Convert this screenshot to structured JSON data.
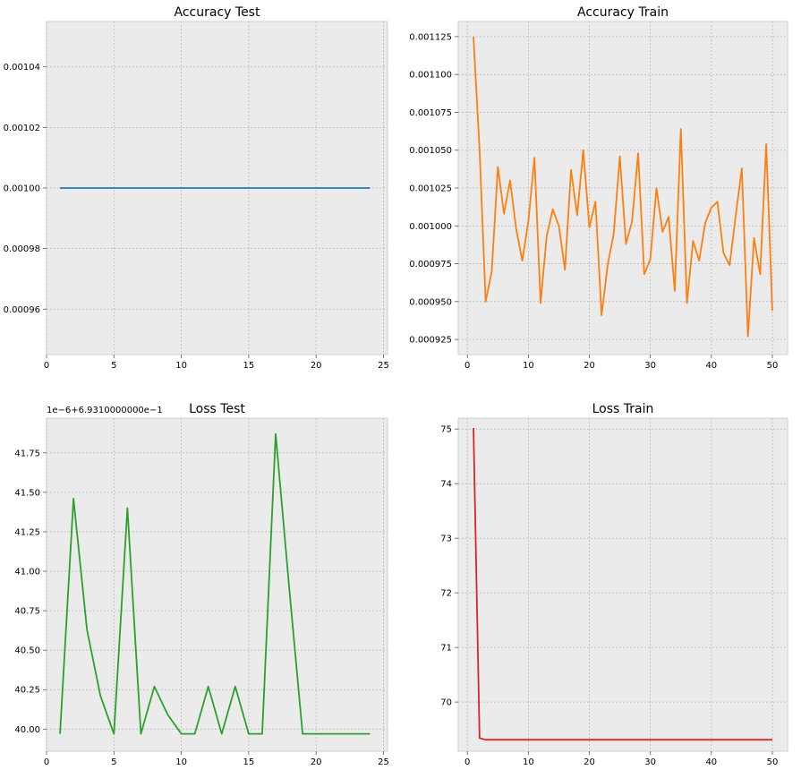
{
  "chart_data": [
    {
      "type": "line",
      "title": "Accuracy Test",
      "xlabel": "",
      "ylabel": "",
      "xlim": [
        0.0,
        25.3
      ],
      "ylim": [
        0.000945,
        0.001055
      ],
      "xticks": [
        0,
        5,
        10,
        15,
        20,
        25
      ],
      "yticks": [
        0.00096,
        0.00098,
        0.001,
        0.00102,
        0.00104
      ],
      "ytick_labels": [
        "0.00096",
        "0.00098",
        "0.00100",
        "0.00102",
        "0.00104"
      ],
      "offset_text": "",
      "grid": true,
      "color": "#1f77b4",
      "x": [
        1,
        2,
        3,
        4,
        5,
        6,
        7,
        8,
        9,
        10,
        11,
        12,
        13,
        14,
        15,
        16,
        17,
        18,
        19,
        20,
        21,
        22,
        23,
        24
      ],
      "y": [
        0.001,
        0.001,
        0.001,
        0.001,
        0.001,
        0.001,
        0.001,
        0.001,
        0.001,
        0.001,
        0.001,
        0.001,
        0.001,
        0.001,
        0.001,
        0.001,
        0.001,
        0.001,
        0.001,
        0.001,
        0.001,
        0.001,
        0.001,
        0.001
      ]
    },
    {
      "type": "line",
      "title": "Accuracy Train",
      "xlabel": "",
      "ylabel": "",
      "xlim": [
        -1.5,
        52.5
      ],
      "ylim": [
        0.000915,
        0.001135
      ],
      "xticks": [
        0,
        10,
        20,
        30,
        40,
        50
      ],
      "yticks": [
        0.000925,
        0.00095,
        0.000975,
        0.001,
        0.001025,
        0.00105,
        0.001075,
        0.0011,
        0.001125
      ],
      "ytick_labels": [
        "0.000925",
        "0.000950",
        "0.000975",
        "0.001000",
        "0.001025",
        "0.001050",
        "0.001075",
        "0.001100",
        "0.001125"
      ],
      "offset_text": "",
      "grid": true,
      "color": "#ff7f0e",
      "x": [
        1,
        2,
        3,
        4,
        5,
        6,
        7,
        8,
        9,
        10,
        11,
        12,
        13,
        14,
        15,
        16,
        17,
        18,
        19,
        20,
        21,
        22,
        23,
        24,
        25,
        26,
        27,
        28,
        29,
        30,
        31,
        32,
        33,
        34,
        35,
        36,
        37,
        38,
        39,
        40,
        41,
        42,
        43,
        44,
        45,
        46,
        47,
        48,
        49,
        50
      ],
      "y": [
        0.001125,
        0.00105,
        0.00095,
        0.00097,
        0.001039,
        0.001008,
        0.00103,
        0.000998,
        0.000977,
        0.001003,
        0.001045,
        0.000949,
        0.000993,
        0.001011,
        0.001,
        0.000971,
        0.001037,
        0.001007,
        0.00105,
        0.000999,
        0.001016,
        0.000941,
        0.000974,
        0.000995,
        0.001046,
        0.000988,
        0.001003,
        0.001048,
        0.000968,
        0.000978,
        0.001025,
        0.000996,
        0.001006,
        0.000957,
        0.001064,
        0.000949,
        0.00099,
        0.000977,
        0.001002,
        0.001012,
        0.001016,
        0.000982,
        0.000974,
        0.001007,
        0.001038,
        0.000927,
        0.000992,
        0.000968,
        0.001054,
        0.000944
      ]
    },
    {
      "type": "line",
      "title": "Loss Test",
      "xlabel": "",
      "ylabel": "",
      "xlim": [
        0.0,
        25.3
      ],
      "ylim": [
        39.86,
        41.97
      ],
      "xticks": [
        0,
        5,
        10,
        15,
        20,
        25
      ],
      "yticks": [
        40.0,
        40.25,
        40.5,
        40.75,
        41.0,
        41.25,
        41.5,
        41.75
      ],
      "ytick_labels": [
        "40.00",
        "40.25",
        "40.50",
        "40.75",
        "41.00",
        "41.25",
        "41.50",
        "41.75"
      ],
      "offset_text": "1e−6+6.9310000000e−1",
      "grid": true,
      "color": "#2ca02c",
      "x": [
        1,
        2,
        3,
        4,
        5,
        6,
        7,
        8,
        9,
        10,
        11,
        12,
        13,
        14,
        15,
        16,
        17,
        18,
        19,
        20,
        21,
        22,
        23,
        24
      ],
      "y": [
        39.97,
        41.46,
        40.63,
        40.21,
        39.97,
        41.4,
        39.97,
        40.27,
        40.09,
        39.97,
        39.97,
        40.27,
        39.97,
        40.27,
        39.97,
        39.97,
        41.87,
        40.9,
        39.97,
        39.97,
        39.97,
        39.97,
        39.97,
        39.97
      ]
    },
    {
      "type": "line",
      "title": "Loss Train",
      "xlabel": "",
      "ylabel": "",
      "xlim": [
        -1.5,
        52.5
      ],
      "ylim": [
        69.1,
        75.2
      ],
      "xticks": [
        0,
        10,
        20,
        30,
        40,
        50
      ],
      "yticks": [
        70,
        71,
        72,
        73,
        74,
        75
      ],
      "ytick_labels": [
        "70",
        "71",
        "72",
        "73",
        "74",
        "75"
      ],
      "offset_text": "",
      "grid": true,
      "color": "#d62728",
      "x": [
        1,
        2,
        3,
        4,
        5,
        6,
        7,
        8,
        9,
        10,
        11,
        12,
        13,
        14,
        15,
        16,
        17,
        18,
        19,
        20,
        21,
        22,
        23,
        24,
        25,
        26,
        27,
        28,
        29,
        30,
        31,
        32,
        33,
        34,
        35,
        36,
        37,
        38,
        39,
        40,
        41,
        42,
        43,
        44,
        45,
        46,
        47,
        48,
        49,
        50
      ],
      "y": [
        75.02,
        69.34,
        69.31,
        69.31,
        69.31,
        69.31,
        69.31,
        69.31,
        69.31,
        69.31,
        69.31,
        69.31,
        69.31,
        69.31,
        69.31,
        69.31,
        69.31,
        69.31,
        69.31,
        69.31,
        69.31,
        69.31,
        69.31,
        69.31,
        69.31,
        69.31,
        69.31,
        69.31,
        69.31,
        69.31,
        69.31,
        69.31,
        69.31,
        69.31,
        69.31,
        69.31,
        69.31,
        69.31,
        69.31,
        69.31,
        69.31,
        69.31,
        69.31,
        69.31,
        69.31,
        69.31,
        69.31,
        69.31,
        69.31,
        69.31
      ]
    }
  ]
}
